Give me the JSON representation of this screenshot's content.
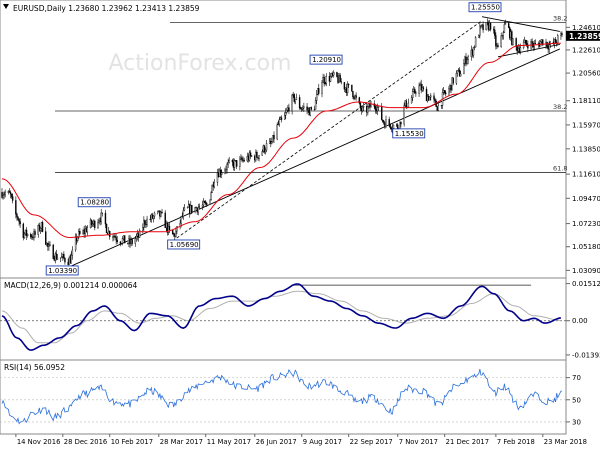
{
  "chart_data": [
    {
      "type": "candlestick",
      "title": "EURUSD,Daily  1.23680 1.23962 1.23413 1.23859",
      "watermark": "ActionForex.com",
      "ylim": [
        1.025,
        1.265
      ],
      "yticks": [
        "1.24610",
        "1.22610",
        "1.20560",
        "1.18110",
        "1.15970",
        "1.13850",
        "1.11610",
        "1.09470",
        "1.07230",
        "1.05180",
        "1.03090"
      ],
      "ytick_values": [
        1.2461,
        1.2261,
        1.2056,
        1.1811,
        1.1597,
        1.1385,
        1.1161,
        1.0947,
        1.0723,
        1.0518,
        1.0309
      ],
      "current_price": {
        "label": "1.23859",
        "value": 1.23859
      },
      "fib_levels": [
        {
          "label": "38.2",
          "value": 1.2503
        },
        {
          "label": "38.2",
          "value": 1.172
        },
        {
          "label": "61.8",
          "value": 1.1175
        }
      ],
      "price_labels": [
        {
          "label": "1.25550",
          "value": 1.2555,
          "date": "2018-01-25"
        },
        {
          "label": "1.20910",
          "value": 1.2091,
          "date": "2017-08-29"
        },
        {
          "label": "1.08280",
          "value": 1.0828,
          "date": "2017-02-02"
        },
        {
          "label": "1.05690",
          "value": 1.0569,
          "date": "2017-04-10"
        },
        {
          "label": "1.15530",
          "value": 1.1553,
          "date": "2017-11-07"
        },
        {
          "label": "1.03390",
          "value": 1.0339,
          "date": "2017-01-03"
        }
      ],
      "series": [
        {
          "color": "#000000",
          "note": "candles"
        },
        {
          "color": "#e8000b",
          "note": "moving average"
        }
      ],
      "x_start_date": "2016-11-01",
      "x_end_date": "2018-04-10",
      "xticks": [
        "14 Nov 2016",
        "28 Dec 2016",
        "10 Feb 2017",
        "28 Mar 2017",
        "11 May 2017",
        "26 Jun 2017",
        "9 Aug 2017",
        "22 Sep 2017",
        "7 Nov 2017",
        "21 Dec 2017",
        "7 Feb 2018",
        "23 Mar 2018"
      ],
      "xtick_dates": [
        "2016-11-14",
        "2016-12-28",
        "2017-02-10",
        "2017-03-28",
        "2017-05-11",
        "2017-06-26",
        "2017-08-09",
        "2017-09-22",
        "2017-11-07",
        "2017-12-21",
        "2018-02-07",
        "2018-03-23"
      ],
      "anchors": [
        [
          "2016-11-01",
          1.1
        ],
        [
          "2016-11-08",
          1.098
        ],
        [
          "2016-11-14",
          1.08
        ],
        [
          "2016-11-22",
          1.063
        ],
        [
          "2016-12-01",
          1.062
        ],
        [
          "2016-12-08",
          1.07
        ],
        [
          "2016-12-15",
          1.05
        ],
        [
          "2016-12-22",
          1.043
        ],
        [
          "2017-01-03",
          1.04
        ],
        [
          "2017-01-12",
          1.062
        ],
        [
          "2017-01-25",
          1.072
        ],
        [
          "2017-02-02",
          1.078
        ],
        [
          "2017-02-10",
          1.064
        ],
        [
          "2017-02-20",
          1.058
        ],
        [
          "2017-03-01",
          1.055
        ],
        [
          "2017-03-08",
          1.06
        ],
        [
          "2017-03-16",
          1.075
        ],
        [
          "2017-03-28",
          1.08
        ],
        [
          "2017-04-10",
          1.062
        ],
        [
          "2017-04-24",
          1.085
        ],
        [
          "2017-05-11",
          1.088
        ],
        [
          "2017-05-22",
          1.118
        ],
        [
          "2017-06-05",
          1.125
        ],
        [
          "2017-06-26",
          1.132
        ],
        [
          "2017-07-10",
          1.142
        ],
        [
          "2017-07-20",
          1.162
        ],
        [
          "2017-08-02",
          1.183
        ],
        [
          "2017-08-09",
          1.175
        ],
        [
          "2017-08-18",
          1.172
        ],
        [
          "2017-08-29",
          1.2
        ],
        [
          "2017-09-08",
          1.202
        ],
        [
          "2017-09-22",
          1.192
        ],
        [
          "2017-10-06",
          1.172
        ],
        [
          "2017-10-16",
          1.178
        ],
        [
          "2017-10-26",
          1.162
        ],
        [
          "2017-11-07",
          1.158
        ],
        [
          "2017-11-15",
          1.178
        ],
        [
          "2017-11-27",
          1.193
        ],
        [
          "2017-12-05",
          1.185
        ],
        [
          "2017-12-15",
          1.176
        ],
        [
          "2017-12-21",
          1.187
        ],
        [
          "2018-01-03",
          1.205
        ],
        [
          "2018-01-12",
          1.22
        ],
        [
          "2018-01-25",
          1.245
        ],
        [
          "2018-02-02",
          1.248
        ],
        [
          "2018-02-09",
          1.227
        ],
        [
          "2018-02-16",
          1.248
        ],
        [
          "2018-02-26",
          1.228
        ],
        [
          "2018-03-09",
          1.232
        ],
        [
          "2018-03-16",
          1.23
        ],
        [
          "2018-03-23",
          1.234
        ],
        [
          "2018-03-30",
          1.23
        ],
        [
          "2018-04-10",
          1.238
        ]
      ],
      "ma_anchors": [
        [
          "2016-11-01",
          1.112
        ],
        [
          "2016-12-01",
          1.08
        ],
        [
          "2017-01-03",
          1.06
        ],
        [
          "2017-02-01",
          1.062
        ],
        [
          "2017-03-01",
          1.065
        ],
        [
          "2017-04-01",
          1.065
        ],
        [
          "2017-05-01",
          1.074
        ],
        [
          "2017-06-01",
          1.098
        ],
        [
          "2017-07-01",
          1.122
        ],
        [
          "2017-08-01",
          1.148
        ],
        [
          "2017-09-01",
          1.172
        ],
        [
          "2017-10-01",
          1.18
        ],
        [
          "2017-11-01",
          1.175
        ],
        [
          "2017-12-01",
          1.175
        ],
        [
          "2018-01-01",
          1.187
        ],
        [
          "2018-02-01",
          1.215
        ],
        [
          "2018-03-01",
          1.23
        ],
        [
          "2018-04-10",
          1.232
        ]
      ]
    },
    {
      "type": "line",
      "title": "MACD(12,26,9) 0.001214 0.000064",
      "ylim": [
        -0.0156,
        0.017
      ],
      "yticks": [
        "0.01512",
        "0.00",
        "-0.01393"
      ],
      "ytick_values": [
        0.01512,
        0.0,
        -0.01393
      ],
      "series": [
        {
          "color": "#00008b",
          "note": "macd"
        },
        {
          "color": "#b0b0b0",
          "note": "signal"
        }
      ],
      "anchors": [
        [
          "2016-11-01",
          0.002
        ],
        [
          "2016-11-15",
          -0.007
        ],
        [
          "2016-11-28",
          -0.012
        ],
        [
          "2016-12-10",
          -0.01
        ],
        [
          "2016-12-25",
          -0.007
        ],
        [
          "2017-01-10",
          -0.002
        ],
        [
          "2017-01-25",
          0.004
        ],
        [
          "2017-02-05",
          0.006
        ],
        [
          "2017-02-20",
          0.0
        ],
        [
          "2017-03-05",
          -0.004
        ],
        [
          "2017-03-20",
          0.003
        ],
        [
          "2017-04-05",
          0.002
        ],
        [
          "2017-04-20",
          -0.003
        ],
        [
          "2017-05-05",
          0.006
        ],
        [
          "2017-05-20",
          0.009
        ],
        [
          "2017-06-05",
          0.01
        ],
        [
          "2017-06-20",
          0.006
        ],
        [
          "2017-07-05",
          0.009
        ],
        [
          "2017-07-20",
          0.012
        ],
        [
          "2017-08-05",
          0.015
        ],
        [
          "2017-08-20",
          0.01
        ],
        [
          "2017-09-05",
          0.008
        ],
        [
          "2017-09-20",
          0.005
        ],
        [
          "2017-10-05",
          0.002
        ],
        [
          "2017-10-20",
          -0.001
        ],
        [
          "2017-11-05",
          -0.003
        ],
        [
          "2017-11-20",
          0.001
        ],
        [
          "2017-12-05",
          0.003
        ],
        [
          "2017-12-20",
          0.001
        ],
        [
          "2018-01-05",
          0.006
        ],
        [
          "2018-01-25",
          0.014
        ],
        [
          "2018-02-05",
          0.011
        ],
        [
          "2018-02-20",
          0.004
        ],
        [
          "2018-03-05",
          0.0
        ],
        [
          "2018-03-15",
          0.001
        ],
        [
          "2018-03-25",
          -0.001
        ],
        [
          "2018-04-10",
          0.0012
        ]
      ],
      "signal_anchors": [
        [
          "2016-11-01",
          0.004
        ],
        [
          "2016-11-20",
          -0.003
        ],
        [
          "2016-12-05",
          -0.009
        ],
        [
          "2016-12-20",
          -0.009
        ],
        [
          "2017-01-05",
          -0.005
        ],
        [
          "2017-01-20",
          0.0
        ],
        [
          "2017-02-05",
          0.004
        ],
        [
          "2017-02-20",
          0.003
        ],
        [
          "2017-03-10",
          -0.001
        ],
        [
          "2017-03-25",
          0.001
        ],
        [
          "2017-04-10",
          0.002
        ],
        [
          "2017-04-25",
          0.0
        ],
        [
          "2017-05-15",
          0.005
        ],
        [
          "2017-06-05",
          0.008
        ],
        [
          "2017-06-25",
          0.008
        ],
        [
          "2017-07-15",
          0.01
        ],
        [
          "2017-08-05",
          0.012
        ],
        [
          "2017-08-25",
          0.011
        ],
        [
          "2017-09-15",
          0.008
        ],
        [
          "2017-10-05",
          0.004
        ],
        [
          "2017-10-25",
          0.001
        ],
        [
          "2017-11-15",
          -0.001
        ],
        [
          "2017-12-05",
          0.001
        ],
        [
          "2017-12-25",
          0.002
        ],
        [
          "2018-01-15",
          0.007
        ],
        [
          "2018-02-05",
          0.011
        ],
        [
          "2018-02-25",
          0.006
        ],
        [
          "2018-03-15",
          0.002
        ],
        [
          "2018-04-10",
          0.0001
        ]
      ]
    },
    {
      "type": "line",
      "title": "RSI(14) 56.0952",
      "ylim": [
        20,
        85
      ],
      "yticks": [
        "70",
        "50",
        "30"
      ],
      "ytick_values": [
        70,
        50,
        30
      ],
      "series": [
        {
          "color": "#2a6fdb",
          "note": "rsi"
        }
      ],
      "anchors": [
        [
          "2016-11-01",
          50
        ],
        [
          "2016-11-10",
          35
        ],
        [
          "2016-11-20",
          30
        ],
        [
          "2016-11-30",
          38
        ],
        [
          "2016-12-10",
          42
        ],
        [
          "2016-12-20",
          34
        ],
        [
          "2017-01-03",
          42
        ],
        [
          "2017-01-15",
          55
        ],
        [
          "2017-02-01",
          60
        ],
        [
          "2017-02-15",
          48
        ],
        [
          "2017-03-01",
          46
        ],
        [
          "2017-03-20",
          58
        ],
        [
          "2017-04-10",
          45
        ],
        [
          "2017-04-25",
          58
        ],
        [
          "2017-05-10",
          66
        ],
        [
          "2017-05-25",
          70
        ],
        [
          "2017-06-10",
          62
        ],
        [
          "2017-06-26",
          60
        ],
        [
          "2017-07-15",
          70
        ],
        [
          "2017-08-01",
          74
        ],
        [
          "2017-08-15",
          62
        ],
        [
          "2017-09-01",
          66
        ],
        [
          "2017-09-15",
          58
        ],
        [
          "2017-10-01",
          48
        ],
        [
          "2017-10-15",
          52
        ],
        [
          "2017-11-01",
          40
        ],
        [
          "2017-11-15",
          60
        ],
        [
          "2017-12-01",
          58
        ],
        [
          "2017-12-15",
          46
        ],
        [
          "2018-01-01",
          62
        ],
        [
          "2018-01-15",
          70
        ],
        [
          "2018-01-25",
          75
        ],
        [
          "2018-02-05",
          56
        ],
        [
          "2018-02-15",
          62
        ],
        [
          "2018-03-01",
          44
        ],
        [
          "2018-03-15",
          54
        ],
        [
          "2018-03-30",
          48
        ],
        [
          "2018-04-10",
          56
        ]
      ]
    }
  ]
}
